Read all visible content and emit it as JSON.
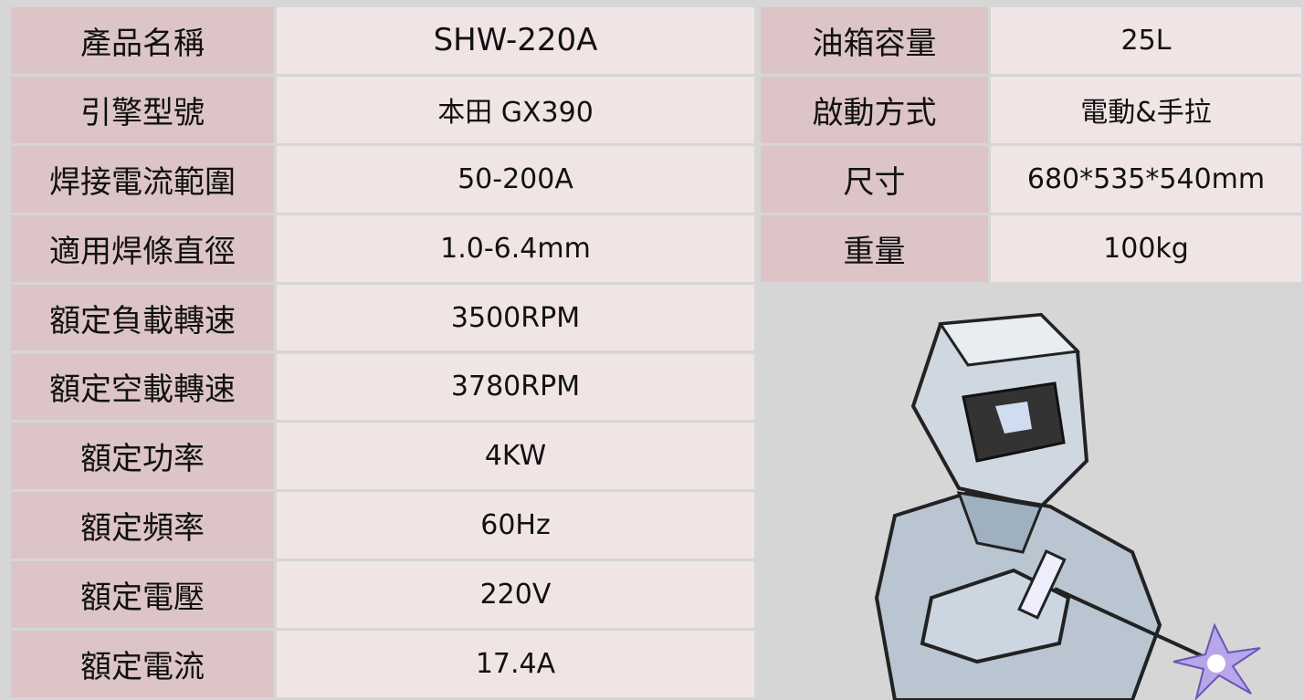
{
  "left_table": {
    "rows": [
      [
        "產品名稱",
        "SHW-220A"
      ],
      [
        "引擎型號",
        "本田 GX390"
      ],
      [
        "焊接電流範圍",
        "50-200A"
      ],
      [
        "適用焊條直徑",
        "1.0-6.4mm"
      ],
      [
        "額定負載轉速",
        "3500RPM"
      ],
      [
        "額定空載轉速",
        "3780RPM"
      ],
      [
        "額定功率",
        "4KW"
      ],
      [
        "額定頻率",
        "60Hz"
      ],
      [
        "額定電壓",
        "220V"
      ],
      [
        "額定電流",
        "17.4A"
      ]
    ]
  },
  "right_table": {
    "rows": [
      [
        "油箱容量",
        "25L"
      ],
      [
        "啟動方式",
        "電動&手拉"
      ],
      [
        "尺寸",
        "680*535*540mm"
      ],
      [
        "重量",
        "100kg"
      ]
    ]
  }
}
